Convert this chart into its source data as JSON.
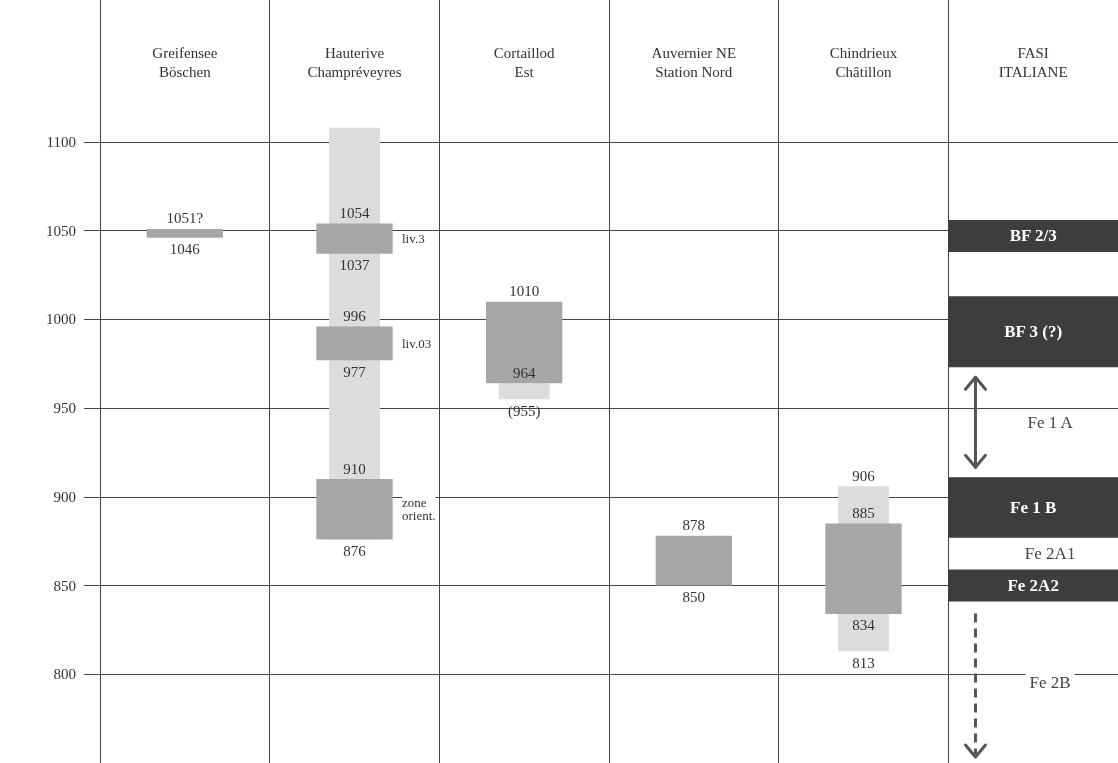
{
  "chart_data": {
    "type": "bar",
    "categories": [
      "Greifensee\nBöschen",
      "Hauterive\nChampréveyres",
      "Cortaillod\nEst",
      "Auvernier NE\nStation Nord",
      "Chindrieux\nChâtillon",
      "FASI\nITALIANE"
    ],
    "series": [
      {
        "color": "#dcdcdc",
        "values": [
          null,
          232,
          9,
          null,
          93,
          null
        ],
        "base": [
          null,
          876,
          955,
          null,
          813,
          null
        ]
      },
      {
        "color": "#a6a6a6",
        "values": [
          5,
          17,
          46,
          28,
          51,
          null
        ],
        "base": [
          1046,
          1037,
          964,
          850,
          834,
          null
        ]
      },
      {
        "color": "#a6a6a6",
        "values": [
          null,
          19,
          null,
          null,
          null,
          null
        ],
        "base": [
          null,
          977,
          null,
          null,
          null,
          null
        ]
      },
      {
        "color": "#a6a6a6",
        "values": [
          null,
          34,
          null,
          null,
          null,
          null
        ],
        "base": [
          null,
          876,
          null,
          null,
          null,
          null
        ]
      },
      {
        "color": "#3d3d3d",
        "x": [
          "FASI\nITALIANE",
          "FASI\nITALIANE",
          "FASI\nITALIANE",
          "FASI\nITALIANE"
        ],
        "values": [
          18,
          40,
          34,
          18
        ],
        "base": [
          1038,
          973,
          877,
          841
        ],
        "value_labels": [
          "BF 2/3",
          "BF 3 (?)",
          "Fe 1 B",
          "Fe 2A2"
        ]
      }
    ],
    "annotations": [
      {
        "text": "1051?",
        "x": "Greifensee\nBöschen",
        "y": 1051
      },
      {
        "text": "1046",
        "x": "Greifensee\nBöschen",
        "y": 1046
      },
      {
        "text": "1054",
        "x": "Hauterive\nChampréveyres",
        "y": 1054
      },
      {
        "text": "1037",
        "x": "Hauterive\nChampréveyres",
        "y": 1037
      },
      "liv.3",
      {
        "text": "996",
        "x": "Hauterive\nChampréveyres",
        "y": 996
      },
      {
        "text": "977",
        "x": "Hauterive\nChampréveyres",
        "y": 977
      },
      "liv.03",
      {
        "text": "910",
        "x": "Hauterive\nChampréveyres",
        "y": 910
      },
      {
        "text": "876",
        "x": "Hauterive\nChampréveyres",
        "y": 876
      },
      "zone\norient.",
      {
        "text": "1010",
        "x": "Cortaillod\nEst",
        "y": 1010
      },
      {
        "text": "964",
        "x": "Cortaillod\nEst",
        "y": 964
      },
      {
        "text": "(955)",
        "x": "Cortaillod\nEst",
        "y": 955
      },
      {
        "text": "878",
        "x": "Auvernier NE\nStation Nord",
        "y": 878
      },
      {
        "text": "850",
        "x": "Auvernier NE\nStation Nord",
        "y": 850
      },
      {
        "text": "906",
        "x": "Chindrieux\nChâtillon",
        "y": 906
      },
      {
        "text": "885",
        "x": "Chindrieux\nChâtillon",
        "y": 885
      },
      {
        "text": "834",
        "x": "Chindrieux\nChâtillon",
        "y": 834
      },
      {
        "text": "813",
        "x": "Chindrieux\nChâtillon",
        "y": 813
      },
      "Fe 1 A",
      "Fe 2A1",
      "Fe 2B"
    ],
    "ylim": [
      750,
      1180
    ],
    "yticks": [
      800,
      850,
      900,
      950,
      1000,
      1050,
      1100
    ],
    "grid": true
  }
}
